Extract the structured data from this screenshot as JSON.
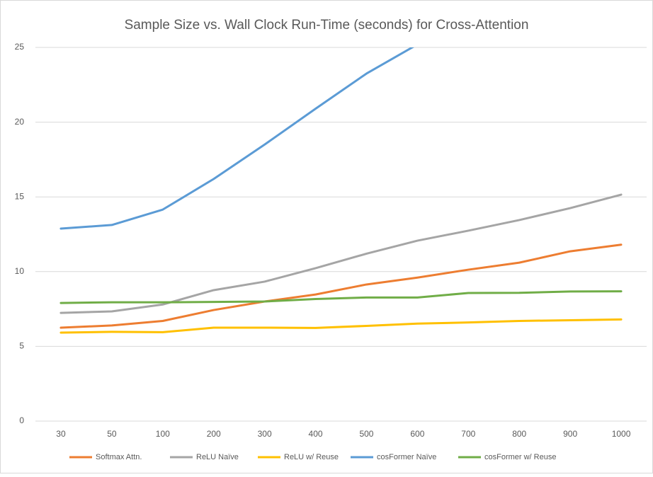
{
  "chart_data": {
    "type": "line",
    "title": "Sample Size vs. Wall Clock Run-Time (seconds) for Cross-Attention",
    "categories": [
      "30",
      "50",
      "100",
      "200",
      "300",
      "400",
      "500",
      "600",
      "700",
      "800",
      "900",
      "1000"
    ],
    "series": [
      {
        "name": "Softmax Attn.",
        "color": "#ed7d31",
        "values": [
          6.25,
          6.4,
          6.7,
          7.43,
          8.0,
          8.47,
          9.14,
          9.6,
          10.13,
          10.6,
          11.36,
          11.8
        ]
      },
      {
        "name": "ReLU Naïve",
        "color": "#a5a5a5",
        "values": [
          7.24,
          7.34,
          7.8,
          8.76,
          9.33,
          10.23,
          11.2,
          12.07,
          12.74,
          13.45,
          14.25,
          15.15
        ]
      },
      {
        "name": "ReLU w/ Reuse",
        "color": "#ffc000",
        "values": [
          5.92,
          5.97,
          5.95,
          6.25,
          6.25,
          6.23,
          6.37,
          6.52,
          6.6,
          6.7,
          6.75,
          6.8
        ]
      },
      {
        "name": "cosFormer Naïve",
        "color": "#5b9bd5",
        "values": [
          12.88,
          13.12,
          14.15,
          16.2,
          18.5,
          20.9,
          23.25,
          25.2,
          null,
          null,
          null,
          null
        ]
      },
      {
        "name": "cosFormer w/ Reuse",
        "color": "#70ad47",
        "values": [
          7.9,
          7.95,
          7.95,
          7.97,
          8.0,
          8.17,
          8.27,
          8.27,
          8.57,
          8.58,
          8.67,
          8.68
        ]
      }
    ],
    "ylim": [
      0,
      25
    ],
    "yticks": [
      0,
      5,
      10,
      15,
      20,
      25
    ],
    "grid": true,
    "legend": "bottom"
  }
}
